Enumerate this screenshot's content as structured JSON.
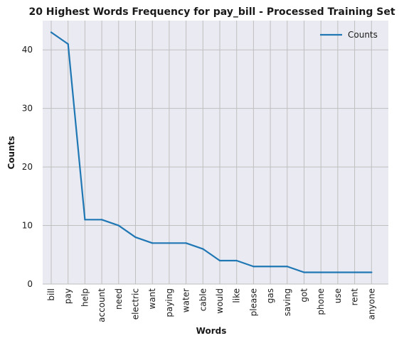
{
  "chart_data": {
    "type": "line",
    "title": "20 Highest Words Frequency for pay_bill - Processed Training Set",
    "xlabel": "Words",
    "ylabel": "Counts",
    "categories": [
      "bill",
      "pay",
      "help",
      "account",
      "need",
      "electric",
      "want",
      "paying",
      "water",
      "cable",
      "would",
      "like",
      "please",
      "gas",
      "saving",
      "got",
      "phone",
      "use",
      "rent",
      "anyone"
    ],
    "series": [
      {
        "name": "Counts",
        "values": [
          43,
          41,
          11,
          11,
          10,
          8,
          7,
          7,
          7,
          6,
          4,
          4,
          3,
          3,
          3,
          2,
          2,
          2,
          2,
          2
        ],
        "color": "#1f77b4"
      }
    ],
    "ylim": [
      0,
      45
    ],
    "yticks": [
      0,
      10,
      20,
      30,
      40
    ],
    "grid": true,
    "legend": "top-right",
    "background_color": "#eaeaf2",
    "grid_color": "#bfbfbf"
  }
}
